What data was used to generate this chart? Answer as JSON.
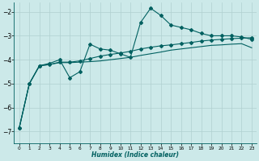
{
  "xlabel": "Humidex (Indice chaleur)",
  "background_color": "#cce9e9",
  "grid_color": "#b0d0d0",
  "line_color": "#006060",
  "x_values": [
    0,
    1,
    2,
    3,
    4,
    5,
    6,
    7,
    8,
    9,
    10,
    11,
    12,
    13,
    14,
    15,
    16,
    17,
    18,
    19,
    20,
    21,
    22,
    23
  ],
  "line1_y": [
    -6.85,
    -5.0,
    -4.25,
    -4.15,
    -4.0,
    -4.75,
    -4.5,
    -3.35,
    -3.55,
    -3.6,
    -3.75,
    -3.9,
    -2.45,
    -1.85,
    -2.15,
    -2.55,
    -2.65,
    -2.75,
    -2.9,
    -3.0,
    -3.0,
    -3.0,
    -3.05,
    -3.15
  ],
  "line2_y": [
    -6.85,
    -5.0,
    -4.25,
    -4.2,
    -4.1,
    -4.1,
    -4.05,
    -3.95,
    -3.85,
    -3.78,
    -3.72,
    -3.65,
    -3.55,
    -3.48,
    -3.42,
    -3.38,
    -3.33,
    -3.28,
    -3.22,
    -3.18,
    -3.15,
    -3.12,
    -3.1,
    -3.08
  ],
  "line3_y": [
    -6.85,
    -5.0,
    -4.25,
    -4.2,
    -4.12,
    -4.12,
    -4.1,
    -4.08,
    -4.05,
    -4.0,
    -3.95,
    -3.9,
    -3.82,
    -3.75,
    -3.68,
    -3.6,
    -3.55,
    -3.5,
    -3.45,
    -3.4,
    -3.38,
    -3.35,
    -3.33,
    -3.5
  ],
  "ylim": [
    -7.5,
    -1.6
  ],
  "xlim": [
    -0.5,
    23.5
  ],
  "yticks": [
    -7,
    -6,
    -5,
    -4,
    -3,
    -2
  ]
}
